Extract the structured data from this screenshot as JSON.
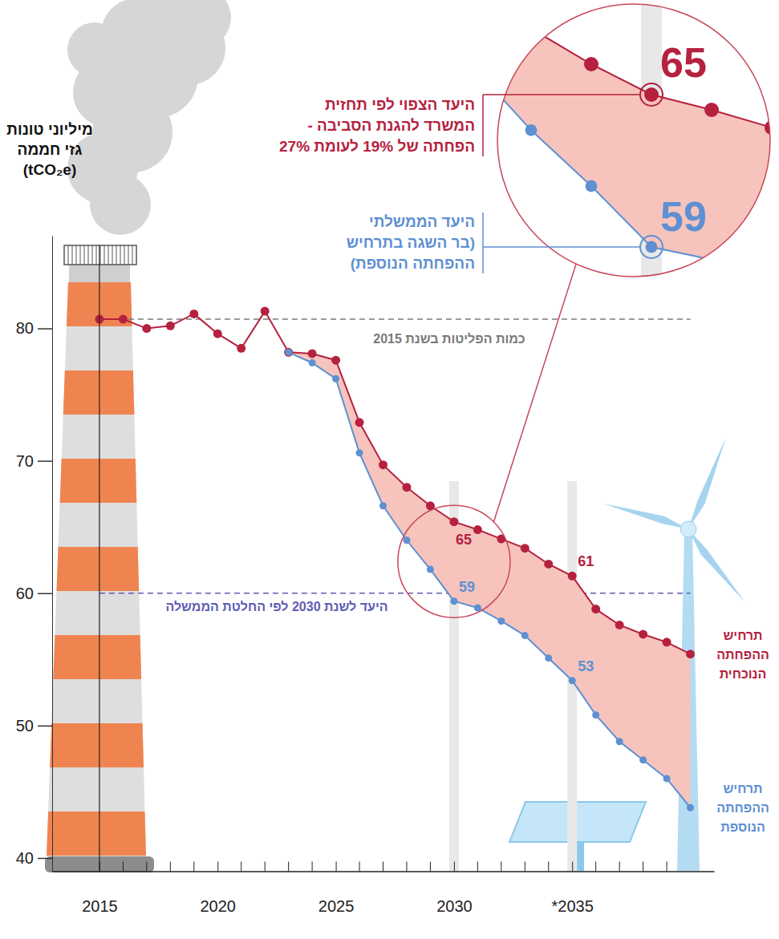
{
  "chart_data": {
    "type": "line",
    "ylabel": [
      "מיליוני טונות",
      "גזי חממה",
      "(tCO₂e)"
    ],
    "x": [
      2015,
      2016,
      2017,
      2018,
      2019,
      2020,
      2021,
      2022,
      2023,
      2024,
      2025,
      2026,
      2027,
      2028,
      2029,
      2030,
      2031,
      2032,
      2033,
      2034,
      2035,
      2036,
      2037,
      2038,
      2039,
      2040
    ],
    "series": [
      {
        "name": "תרחיש ההפחתה הנוכחית",
        "color": "#b5213e",
        "marker": "circle",
        "values": [
          80.7,
          80.7,
          80.0,
          80.2,
          81.1,
          79.6,
          78.5,
          81.3,
          78.2,
          78.1,
          77.6,
          72.9,
          69.7,
          68.0,
          66.6,
          65.4,
          64.8,
          64.1,
          63.4,
          62.2,
          61.3,
          58.8,
          57.6,
          56.9,
          56.3,
          55.4
        ]
      },
      {
        "name": "תרחיש ההפחתה הנוספת",
        "color": "#5e90d2",
        "marker": "circle",
        "values": [
          null,
          null,
          null,
          null,
          null,
          null,
          null,
          null,
          78.2,
          77.4,
          76.2,
          70.6,
          66.6,
          64.0,
          61.8,
          59.4,
          58.9,
          57.9,
          56.8,
          55.1,
          53.4,
          50.8,
          48.8,
          47.4,
          46.0,
          43.8
        ]
      }
    ],
    "xlim": [
      2013,
      2041
    ],
    "xticks": [
      2015,
      2020,
      2025,
      2030,
      {
        "value": 2035,
        "label": "*2035"
      }
    ],
    "x_minor_ticks": [
      2016,
      2017,
      2018,
      2019,
      2021,
      2022,
      2023,
      2024,
      2026,
      2027,
      2028,
      2029,
      2031,
      2032,
      2033,
      2034,
      2036,
      2037,
      2038,
      2039
    ],
    "ylim": [
      39,
      87
    ],
    "yticks": [
      40,
      50,
      60,
      70,
      80
    ],
    "reference_lines": [
      {
        "y": 80.7,
        "label": "כמות הפליטות בשנת 2015",
        "color": "#7a7a7a"
      },
      {
        "y": 60,
        "label": "היעד לשנת 2030 לפי החלטת הממשלה",
        "color": "#5d5db3"
      }
    ],
    "annotations": [
      {
        "series": 0,
        "x": 2030,
        "text": "65"
      },
      {
        "series": 0,
        "x": 2035,
        "text": "61"
      },
      {
        "series": 1,
        "x": 2030,
        "text": "59"
      },
      {
        "series": 1,
        "x": 2035,
        "text": "53"
      }
    ],
    "callouts": [
      {
        "series": 0,
        "x": 2030,
        "text": "65",
        "lines": [
          "היעד הצפוי לפי תחזית",
          "המשרד להגנת הסביבה -",
          "הפחתה של 19% לעומת 27%"
        ]
      },
      {
        "series": 1,
        "x": 2030,
        "text": "59",
        "lines": [
          "היעד הממשלתי",
          "(בר השגה בתרחיש",
          "ההפחתה הנוספת)"
        ]
      }
    ]
  }
}
